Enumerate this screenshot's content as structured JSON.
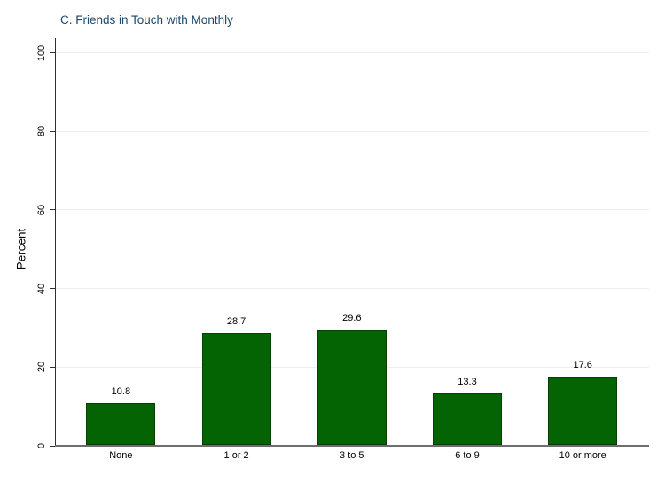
{
  "chart_data": {
    "type": "bar",
    "title": "C. Friends in Touch with Monthly",
    "categories": [
      "None",
      "1 or 2",
      "3 to 5",
      "6 to 9",
      "10 or more"
    ],
    "values": [
      10.8,
      28.7,
      29.6,
      13.3,
      17.6
    ],
    "value_labels": [
      "10.8",
      "28.7",
      "29.6",
      "13.3",
      "17.6"
    ],
    "xlabel": "",
    "ylabel": "Percent",
    "ylim": [
      0,
      100
    ],
    "yticks": [
      0,
      20,
      40,
      60,
      80,
      100
    ],
    "grid": true,
    "legend_position": "none",
    "colors": {
      "bar_fill": "#046404",
      "bar_border": "#033f03",
      "gridline": "#e9eff4",
      "y_axis": "#303030",
      "x_axis": "#6e6e6e",
      "title": "#1a476f",
      "tick_text": "#000000"
    }
  }
}
